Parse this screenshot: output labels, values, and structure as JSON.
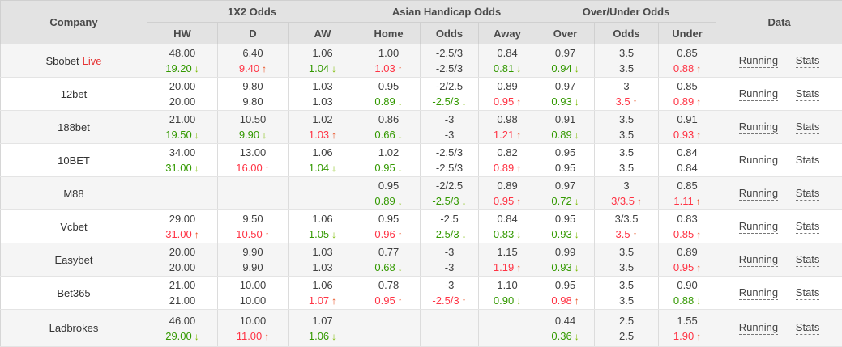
{
  "header": {
    "company": "Company",
    "data": "Data",
    "groups": [
      {
        "label": "1X2 Odds",
        "cols": [
          "HW",
          "D",
          "AW"
        ]
      },
      {
        "label": "Asian Handicap Odds",
        "cols": [
          "Home",
          "Odds",
          "Away"
        ]
      },
      {
        "label": "Over/Under Odds",
        "cols": [
          "Over",
          "Odds",
          "Under"
        ]
      }
    ]
  },
  "links": {
    "running": "Running",
    "stats": "Stats"
  },
  "icons": {
    "up": "↑",
    "down": "↓"
  },
  "colors": {
    "header_bg": "#e3e3e3",
    "row_alt_bg": "#f5f5f5",
    "up_red": "#ff3344",
    "down_green": "#339900",
    "live_red": "#e63333"
  },
  "rows": [
    {
      "company": "Sbobet",
      "live": "Live",
      "cells": [
        {
          "t": "48.00",
          "b": "19.20",
          "trend": "down"
        },
        {
          "t": "6.40",
          "b": "9.40",
          "trend": "up"
        },
        {
          "t": "1.06",
          "b": "1.04",
          "trend": "down"
        },
        {
          "t": "1.00",
          "b": "1.03",
          "trend": "up"
        },
        {
          "t": "-2.5/3",
          "b": "-2.5/3",
          "trend": "none"
        },
        {
          "t": "0.84",
          "b": "0.81",
          "trend": "down"
        },
        {
          "t": "0.97",
          "b": "0.94",
          "trend": "down"
        },
        {
          "t": "3.5",
          "b": "3.5",
          "trend": "none"
        },
        {
          "t": "0.85",
          "b": "0.88",
          "trend": "up"
        }
      ]
    },
    {
      "company": "12bet",
      "live": "",
      "cells": [
        {
          "t": "20.00",
          "b": "20.00",
          "trend": "none"
        },
        {
          "t": "9.80",
          "b": "9.80",
          "trend": "none"
        },
        {
          "t": "1.03",
          "b": "1.03",
          "trend": "none"
        },
        {
          "t": "0.95",
          "b": "0.89",
          "trend": "down"
        },
        {
          "t": "-2/2.5",
          "b": "-2.5/3",
          "trend": "down"
        },
        {
          "t": "0.89",
          "b": "0.95",
          "trend": "up"
        },
        {
          "t": "0.97",
          "b": "0.93",
          "trend": "down"
        },
        {
          "t": "3",
          "b": "3.5",
          "trend": "up"
        },
        {
          "t": "0.85",
          "b": "0.89",
          "trend": "up"
        }
      ]
    },
    {
      "company": "188bet",
      "live": "",
      "cells": [
        {
          "t": "21.00",
          "b": "19.50",
          "trend": "down"
        },
        {
          "t": "10.50",
          "b": "9.90",
          "trend": "down"
        },
        {
          "t": "1.02",
          "b": "1.03",
          "trend": "up"
        },
        {
          "t": "0.86",
          "b": "0.66",
          "trend": "down"
        },
        {
          "t": "-3",
          "b": "-3",
          "trend": "none"
        },
        {
          "t": "0.98",
          "b": "1.21",
          "trend": "up"
        },
        {
          "t": "0.91",
          "b": "0.89",
          "trend": "down"
        },
        {
          "t": "3.5",
          "b": "3.5",
          "trend": "none"
        },
        {
          "t": "0.91",
          "b": "0.93",
          "trend": "up"
        }
      ]
    },
    {
      "company": "10BET",
      "live": "",
      "cells": [
        {
          "t": "34.00",
          "b": "31.00",
          "trend": "down"
        },
        {
          "t": "13.00",
          "b": "16.00",
          "trend": "up"
        },
        {
          "t": "1.06",
          "b": "1.04",
          "trend": "down"
        },
        {
          "t": "1.02",
          "b": "0.95",
          "trend": "down"
        },
        {
          "t": "-2.5/3",
          "b": "-2.5/3",
          "trend": "none"
        },
        {
          "t": "0.82",
          "b": "0.89",
          "trend": "up"
        },
        {
          "t": "0.95",
          "b": "0.95",
          "trend": "none"
        },
        {
          "t": "3.5",
          "b": "3.5",
          "trend": "none"
        },
        {
          "t": "0.84",
          "b": "0.84",
          "trend": "none"
        }
      ]
    },
    {
      "company": "M88",
      "live": "",
      "cells": [
        {
          "t": "",
          "b": "",
          "trend": "none"
        },
        {
          "t": "",
          "b": "",
          "trend": "none"
        },
        {
          "t": "",
          "b": "",
          "trend": "none"
        },
        {
          "t": "0.95",
          "b": "0.89",
          "trend": "down"
        },
        {
          "t": "-2/2.5",
          "b": "-2.5/3",
          "trend": "down"
        },
        {
          "t": "0.89",
          "b": "0.95",
          "trend": "up"
        },
        {
          "t": "0.97",
          "b": "0.72",
          "trend": "down"
        },
        {
          "t": "3",
          "b": "3/3.5",
          "trend": "up"
        },
        {
          "t": "0.85",
          "b": "1.11",
          "trend": "up"
        }
      ]
    },
    {
      "company": "Vcbet",
      "live": "",
      "cells": [
        {
          "t": "29.00",
          "b": "31.00",
          "trend": "up"
        },
        {
          "t": "9.50",
          "b": "10.50",
          "trend": "up"
        },
        {
          "t": "1.06",
          "b": "1.05",
          "trend": "down"
        },
        {
          "t": "0.95",
          "b": "0.96",
          "trend": "up"
        },
        {
          "t": "-2.5",
          "b": "-2.5/3",
          "trend": "down"
        },
        {
          "t": "0.84",
          "b": "0.83",
          "trend": "down"
        },
        {
          "t": "0.95",
          "b": "0.93",
          "trend": "down"
        },
        {
          "t": "3/3.5",
          "b": "3.5",
          "trend": "up"
        },
        {
          "t": "0.83",
          "b": "0.85",
          "trend": "up"
        }
      ]
    },
    {
      "company": "Easybet",
      "live": "",
      "cells": [
        {
          "t": "20.00",
          "b": "20.00",
          "trend": "none"
        },
        {
          "t": "9.90",
          "b": "9.90",
          "trend": "none"
        },
        {
          "t": "1.03",
          "b": "1.03",
          "trend": "none"
        },
        {
          "t": "0.77",
          "b": "0.68",
          "trend": "down"
        },
        {
          "t": "-3",
          "b": "-3",
          "trend": "none"
        },
        {
          "t": "1.15",
          "b": "1.19",
          "trend": "up"
        },
        {
          "t": "0.99",
          "b": "0.93",
          "trend": "down"
        },
        {
          "t": "3.5",
          "b": "3.5",
          "trend": "none"
        },
        {
          "t": "0.89",
          "b": "0.95",
          "trend": "up"
        }
      ]
    },
    {
      "company": "Bet365",
      "live": "",
      "cells": [
        {
          "t": "21.00",
          "b": "21.00",
          "trend": "none"
        },
        {
          "t": "10.00",
          "b": "10.00",
          "trend": "none"
        },
        {
          "t": "1.06",
          "b": "1.07",
          "trend": "up"
        },
        {
          "t": "0.78",
          "b": "0.95",
          "trend": "up"
        },
        {
          "t": "-3",
          "b": "-2.5/3",
          "trend": "up"
        },
        {
          "t": "1.10",
          "b": "0.90",
          "trend": "down"
        },
        {
          "t": "0.95",
          "b": "0.98",
          "trend": "up"
        },
        {
          "t": "3.5",
          "b": "3.5",
          "trend": "none"
        },
        {
          "t": "0.90",
          "b": "0.88",
          "trend": "down"
        }
      ]
    },
    {
      "company": "Ladbrokes",
      "live": "",
      "cells": [
        {
          "t": "46.00",
          "b": "29.00",
          "trend": "down"
        },
        {
          "t": "10.00",
          "b": "11.00",
          "trend": "up"
        },
        {
          "t": "1.07",
          "b": "1.06",
          "trend": "down"
        },
        {
          "t": "",
          "b": "",
          "trend": "none"
        },
        {
          "t": "",
          "b": "",
          "trend": "none"
        },
        {
          "t": "",
          "b": "",
          "trend": "none"
        },
        {
          "t": "0.44",
          "b": "0.36",
          "trend": "down"
        },
        {
          "t": "2.5",
          "b": "2.5",
          "trend": "none"
        },
        {
          "t": "1.55",
          "b": "1.90",
          "trend": "up"
        }
      ]
    }
  ]
}
